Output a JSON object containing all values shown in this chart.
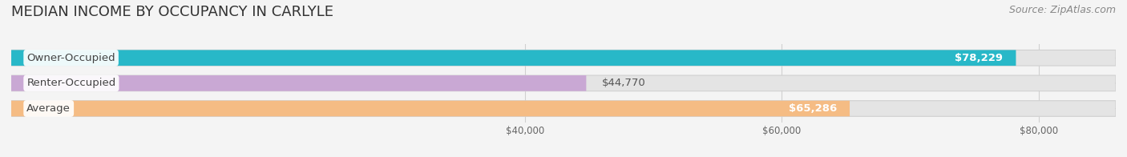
{
  "title": "MEDIAN INCOME BY OCCUPANCY IN CARLYLE",
  "source": "Source: ZipAtlas.com",
  "categories": [
    "Owner-Occupied",
    "Renter-Occupied",
    "Average"
  ],
  "values": [
    78229,
    44770,
    65286
  ],
  "bar_colors": [
    "#28b8c8",
    "#c9a8d4",
    "#f5bc84"
  ],
  "value_labels": [
    "$78,229",
    "$44,770",
    "$65,286"
  ],
  "value_inside": [
    true,
    false,
    true
  ],
  "xlim_min": 0,
  "xlim_max": 86000,
  "xticks": [
    40000,
    60000,
    80000
  ],
  "xtick_labels": [
    "$40,000",
    "$60,000",
    "$80,000"
  ],
  "background_color": "#f4f4f4",
  "bar_bg_color": "#e4e4e4",
  "bar_border_color": "#d0d0d0",
  "title_fontsize": 13,
  "source_fontsize": 9,
  "label_fontsize": 9.5,
  "value_fontsize": 9.5,
  "bar_height": 0.62,
  "grid_color": "#d0d0d0"
}
